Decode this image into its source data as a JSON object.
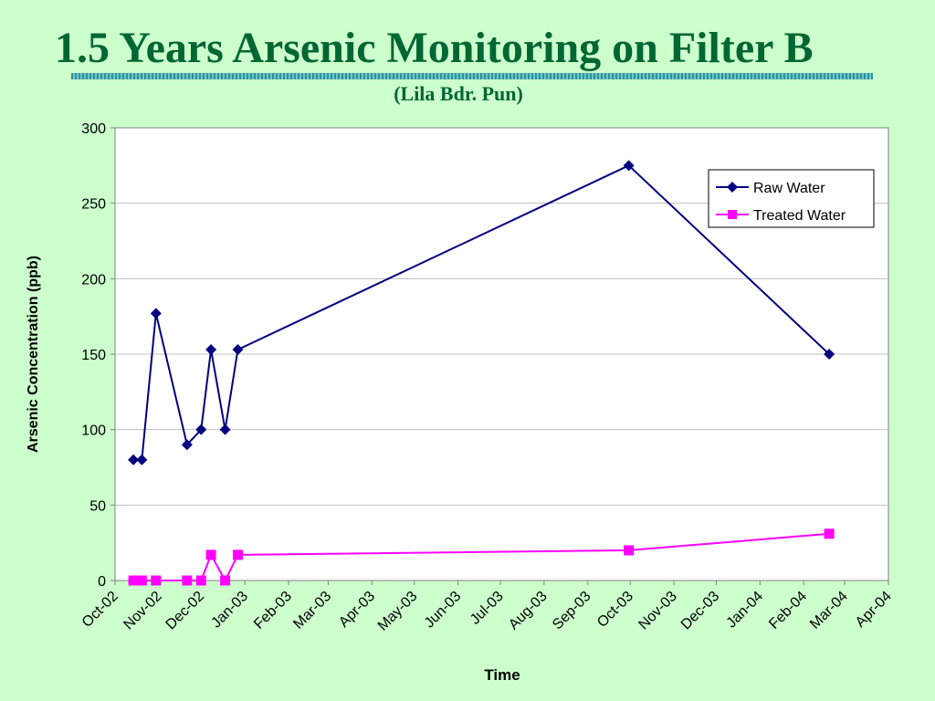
{
  "title": "1.5 Years Arsenic Monitoring on Filter B",
  "subtitle": "(Lila Bdr. Pun)",
  "chart_data": {
    "type": "line",
    "xlabel": "Time",
    "ylabel": "Arsenic Concentration (ppb)",
    "ylim": [
      0,
      300
    ],
    "yticks": [
      0,
      50,
      100,
      150,
      200,
      250,
      300
    ],
    "xlim": [
      "2002-10-01",
      "2004-04-01"
    ],
    "xtick_labels": [
      "Oct-02",
      "Nov-02",
      "Dec-02",
      "Jan-03",
      "Feb-03",
      "Mar-03",
      "Apr-03",
      "May-03",
      "Jun-03",
      "Jul-03",
      "Aug-03",
      "Sep-03",
      "Oct-03",
      "Nov-03",
      "Dec-03",
      "Jan-04",
      "Feb-04",
      "Mar-04",
      "Apr-04"
    ],
    "grid": "horizontal",
    "legend_position": "top-right",
    "colors": {
      "plot_background": "#ffffff",
      "gridline": "#c0c0c0"
    },
    "series": [
      {
        "name": "Raw Water",
        "marker": "diamond",
        "color": "#000080",
        "points": [
          {
            "x": "2002-10-14",
            "y": 80
          },
          {
            "x": "2002-10-20",
            "y": 80
          },
          {
            "x": "2002-10-30",
            "y": 177
          },
          {
            "x": "2002-11-21",
            "y": 90
          },
          {
            "x": "2002-12-01",
            "y": 100
          },
          {
            "x": "2002-12-08",
            "y": 153
          },
          {
            "x": "2002-12-18",
            "y": 100
          },
          {
            "x": "2002-12-27",
            "y": 153
          },
          {
            "x": "2003-09-30",
            "y": 275
          },
          {
            "x": "2004-02-19",
            "y": 150
          }
        ]
      },
      {
        "name": "Treated Water",
        "marker": "square",
        "color": "#ff00ff",
        "points": [
          {
            "x": "2002-10-14",
            "y": 0
          },
          {
            "x": "2002-10-20",
            "y": 0
          },
          {
            "x": "2002-10-30",
            "y": 0
          },
          {
            "x": "2002-11-21",
            "y": 0
          },
          {
            "x": "2002-12-01",
            "y": 0
          },
          {
            "x": "2002-12-08",
            "y": 17
          },
          {
            "x": "2002-12-18",
            "y": 0
          },
          {
            "x": "2002-12-27",
            "y": 17
          },
          {
            "x": "2003-09-30",
            "y": 20
          },
          {
            "x": "2004-02-19",
            "y": 31
          }
        ]
      }
    ]
  }
}
